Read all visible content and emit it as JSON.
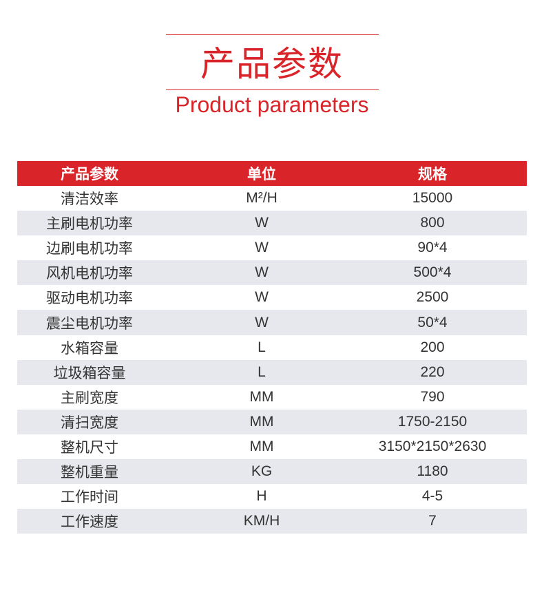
{
  "title": "产品参数",
  "subtitle": "Product parameters",
  "accent": "#d9252a",
  "table": {
    "headers": [
      "产品参数",
      "单位",
      "规格"
    ],
    "rows": [
      [
        "清洁效率",
        "M²/H",
        "15000"
      ],
      [
        "主刷电机功率",
        "W",
        "800"
      ],
      [
        "边刷电机功率",
        "W",
        "90*4"
      ],
      [
        "风机电机功率",
        "W",
        "500*4"
      ],
      [
        "驱动电机功率",
        "W",
        "2500"
      ],
      [
        "震尘电机功率",
        "W",
        "50*4"
      ],
      [
        "水箱容量",
        "L",
        "200"
      ],
      [
        "垃圾箱容量",
        "L",
        "220"
      ],
      [
        "主刷宽度",
        "MM",
        "790"
      ],
      [
        "清扫宽度",
        "MM",
        "1750-2150"
      ],
      [
        "整机尺寸",
        "MM",
        "3150*2150*2630"
      ],
      [
        "整机重量",
        "KG",
        "1180"
      ],
      [
        "工作时间",
        "H",
        "4-5"
      ],
      [
        "工作速度",
        "KM/H",
        "7"
      ]
    ]
  }
}
